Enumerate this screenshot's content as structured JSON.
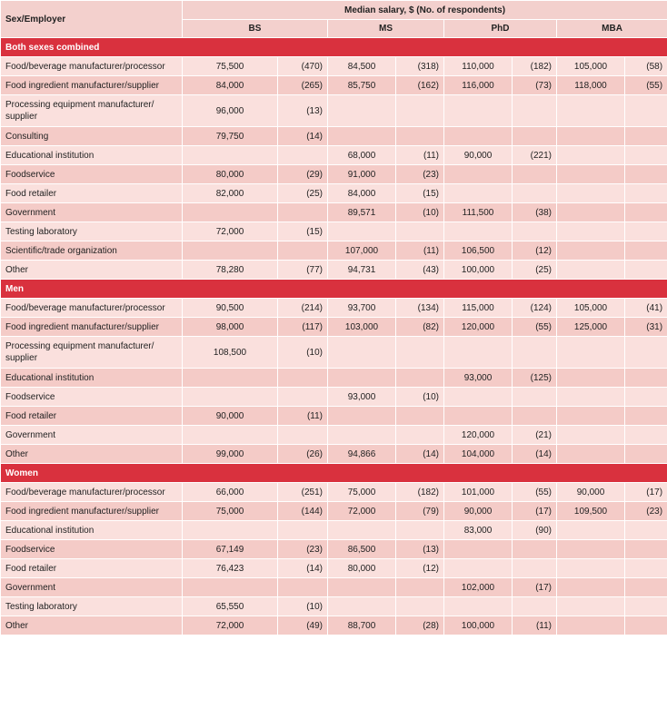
{
  "header": {
    "row_label": "Sex/Employer",
    "group_title": "Median salary, $ (No. of respondents)",
    "degrees": [
      "BS",
      "MS",
      "PhD",
      "MBA"
    ]
  },
  "sections": [
    {
      "title": "Both sexes combined",
      "rows": [
        {
          "label": "Food/beverage manufacturer/processor",
          "cells": [
            [
              "75,500",
              "(470)"
            ],
            [
              "84,500",
              "(318)"
            ],
            [
              "110,000",
              "(182)"
            ],
            [
              "105,000",
              "(58)"
            ]
          ]
        },
        {
          "label": "Food ingredient manufacturer/supplier",
          "cells": [
            [
              "84,000",
              "(265)"
            ],
            [
              "85,750",
              "(162)"
            ],
            [
              "116,000",
              "(73)"
            ],
            [
              "118,000",
              "(55)"
            ]
          ]
        },
        {
          "label": "Processing equipment manufacturer/\nsupplier",
          "cells": [
            [
              "96,000",
              "(13)"
            ],
            null,
            null,
            null
          ]
        },
        {
          "label": "Consulting",
          "cells": [
            [
              "79,750",
              "(14)"
            ],
            null,
            null,
            null
          ]
        },
        {
          "label": "Educational institution",
          "cells": [
            null,
            [
              "68,000",
              "(11)"
            ],
            [
              "90,000",
              "(221)"
            ],
            null
          ]
        },
        {
          "label": "Foodservice",
          "cells": [
            [
              "80,000",
              "(29)"
            ],
            [
              "91,000",
              "(23)"
            ],
            null,
            null
          ]
        },
        {
          "label": "Food retailer",
          "cells": [
            [
              "82,000",
              "(25)"
            ],
            [
              "84,000",
              "(15)"
            ],
            null,
            null
          ]
        },
        {
          "label": "Government",
          "cells": [
            null,
            [
              "89,571",
              "(10)"
            ],
            [
              "111,500",
              "(38)"
            ],
            null
          ]
        },
        {
          "label": "Testing laboratory",
          "cells": [
            [
              "72,000",
              "(15)"
            ],
            null,
            null,
            null
          ]
        },
        {
          "label": "Scientific/trade organization",
          "cells": [
            null,
            [
              "107,000",
              "(11)"
            ],
            [
              "106,500",
              "(12)"
            ],
            null
          ]
        },
        {
          "label": "Other",
          "cells": [
            [
              "78,280",
              "(77)"
            ],
            [
              "94,731",
              "(43)"
            ],
            [
              "100,000",
              "(25)"
            ],
            null
          ]
        }
      ]
    },
    {
      "title": "Men",
      "rows": [
        {
          "label": "Food/beverage manufacturer/processor",
          "cells": [
            [
              "90,500",
              "(214)"
            ],
            [
              "93,700",
              "(134)"
            ],
            [
              "115,000",
              "(124)"
            ],
            [
              "105,000",
              "(41)"
            ]
          ]
        },
        {
          "label": "Food ingredient manufacturer/supplier",
          "cells": [
            [
              "98,000",
              "(117)"
            ],
            [
              "103,000",
              "(82)"
            ],
            [
              "120,000",
              "(55)"
            ],
            [
              "125,000",
              "(31)"
            ]
          ]
        },
        {
          "label": "Processing equipment manufacturer/\nsupplier",
          "cells": [
            [
              "108,500",
              "(10)"
            ],
            null,
            null,
            null
          ]
        },
        {
          "label": "Educational institution",
          "cells": [
            null,
            null,
            [
              "93,000",
              "(125)"
            ],
            null
          ]
        },
        {
          "label": "Foodservice",
          "cells": [
            null,
            [
              "93,000",
              "(10)"
            ],
            null,
            null
          ]
        },
        {
          "label": "Food retailer",
          "cells": [
            [
              "90,000",
              "(11)"
            ],
            null,
            null,
            null
          ]
        },
        {
          "label": "Government",
          "cells": [
            null,
            null,
            [
              "120,000",
              "(21)"
            ],
            null
          ]
        },
        {
          "label": "Other",
          "cells": [
            [
              "99,000",
              "(26)"
            ],
            [
              "94,866",
              "(14)"
            ],
            [
              "104,000",
              "(14)"
            ],
            null
          ]
        }
      ]
    },
    {
      "title": "Women",
      "rows": [
        {
          "label": "Food/beverage manufacturer/processor",
          "cells": [
            [
              "66,000",
              "(251)"
            ],
            [
              "75,000",
              "(182)"
            ],
            [
              "101,000",
              "(55)"
            ],
            [
              "90,000",
              "(17)"
            ]
          ]
        },
        {
          "label": "Food ingredient manufacturer/supplier",
          "cells": [
            [
              "75,000",
              "(144)"
            ],
            [
              "72,000",
              "(79)"
            ],
            [
              "90,000",
              "(17)"
            ],
            [
              "109,500",
              "(23)"
            ]
          ]
        },
        {
          "label": "Educational institution",
          "cells": [
            null,
            null,
            [
              "83,000",
              "(90)"
            ],
            null
          ]
        },
        {
          "label": "Foodservice",
          "cells": [
            [
              "67,149",
              "(23)"
            ],
            [
              "86,500",
              "(13)"
            ],
            null,
            null
          ]
        },
        {
          "label": "Food retailer",
          "cells": [
            [
              "76,423",
              "(14)"
            ],
            [
              "80,000",
              "(12)"
            ],
            null,
            null
          ]
        },
        {
          "label": "Government",
          "cells": [
            null,
            null,
            [
              "102,000",
              "(17)"
            ],
            null
          ]
        },
        {
          "label": "Testing laboratory",
          "cells": [
            [
              "65,550",
              "(10)"
            ],
            null,
            null,
            null
          ]
        },
        {
          "label": "Other",
          "cells": [
            [
              "72,000",
              "(49)"
            ],
            [
              "88,700",
              "(28)"
            ],
            [
              "100,000",
              "(11)"
            ],
            null
          ]
        }
      ]
    }
  ]
}
